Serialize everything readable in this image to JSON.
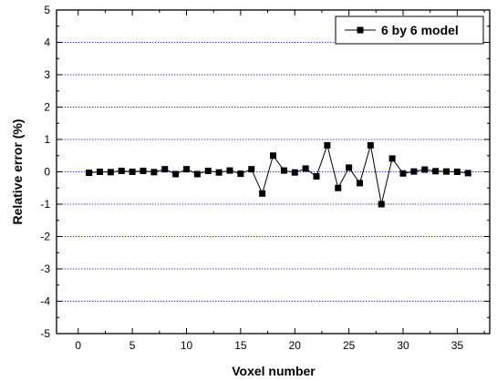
{
  "chart_data": {
    "type": "line",
    "title": "",
    "xlabel": "Voxel number",
    "ylabel": "Relative error (%)",
    "xlim": [
      -2,
      38
    ],
    "ylim": [
      -5,
      5
    ],
    "xticks": [
      0,
      5,
      10,
      15,
      20,
      25,
      30,
      35
    ],
    "yticks": [
      -5,
      -4,
      -3,
      -2,
      -1,
      0,
      1,
      2,
      3,
      4,
      5
    ],
    "grid": "horizontal dotted",
    "legend_position": "top-right",
    "series": [
      {
        "name": "6 by 6 model",
        "marker": "filled-square",
        "color": "#000000",
        "x": [
          1,
          2,
          3,
          4,
          5,
          6,
          7,
          8,
          9,
          10,
          11,
          12,
          13,
          14,
          15,
          16,
          17,
          18,
          19,
          20,
          21,
          22,
          23,
          24,
          25,
          26,
          27,
          28,
          29,
          30,
          31,
          32,
          33,
          34,
          35,
          36
        ],
        "y": [
          -0.03,
          0.0,
          -0.01,
          0.03,
          0.0,
          0.03,
          -0.01,
          0.08,
          -0.07,
          0.08,
          -0.07,
          0.03,
          -0.02,
          0.04,
          -0.06,
          0.08,
          -0.67,
          0.5,
          0.04,
          -0.02,
          0.1,
          -0.14,
          0.82,
          -0.5,
          0.13,
          -0.35,
          0.82,
          -1.0,
          0.41,
          -0.05,
          0.01,
          0.07,
          0.02,
          0.01,
          0.0,
          -0.04
        ]
      }
    ]
  }
}
